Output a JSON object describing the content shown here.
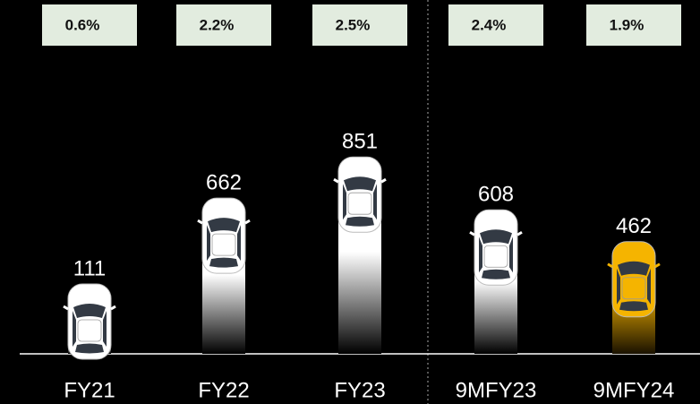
{
  "chart_data": {
    "type": "bar",
    "categories": [
      "FY21",
      "FY22",
      "FY23",
      "9MFY23",
      "9MFY24"
    ],
    "values": [
      111,
      662,
      851,
      608,
      462
    ],
    "colors": [
      "#ffffff",
      "#ffffff",
      "#ffffff",
      "#ffffff",
      "#f5b400"
    ],
    "annotations": {
      "values": [
        0.6,
        2.2,
        2.5,
        2.4,
        1.9
      ],
      "labels": [
        "0.6%",
        "2.2%",
        "2.5%",
        "2.4%",
        "1.9%"
      ]
    }
  }
}
